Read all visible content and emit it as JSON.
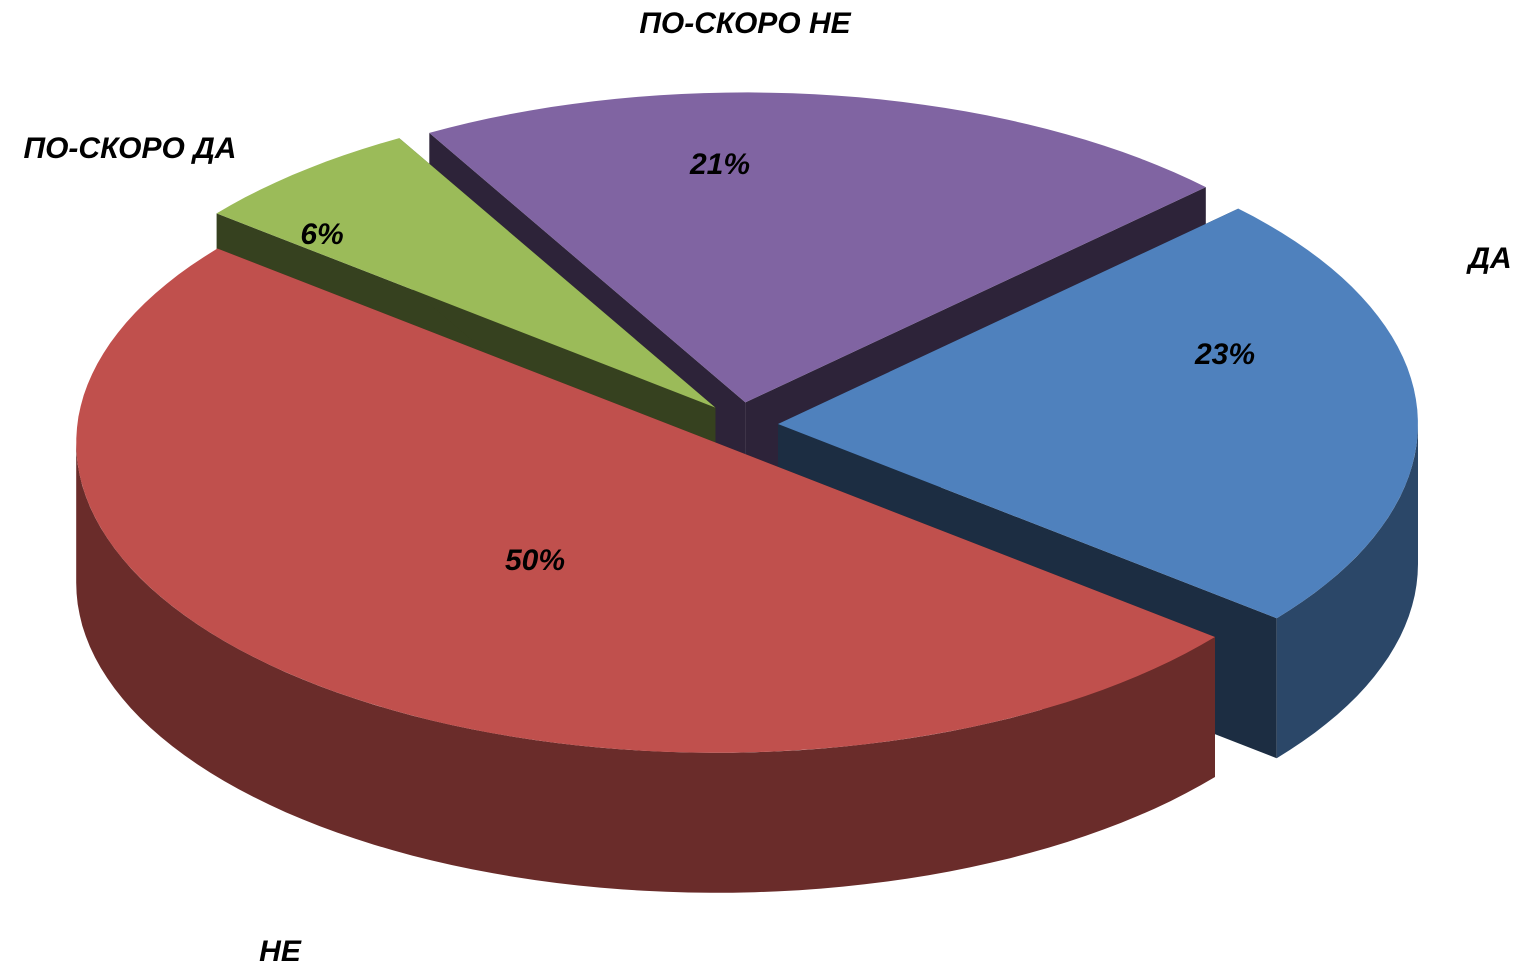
{
  "chart_data": {
    "type": "pie",
    "categories": [
      "ДА",
      "НЕ",
      "ПО-СКОРО ДА",
      "ПО-СКОРО НЕ"
    ],
    "values": [
      23,
      50,
      6,
      21
    ],
    "value_labels": [
      "23%",
      "50%",
      "6%",
      "21%"
    ],
    "colors": [
      "#4f81bd",
      "#c0504d",
      "#9bbb59",
      "#8064a2"
    ]
  }
}
